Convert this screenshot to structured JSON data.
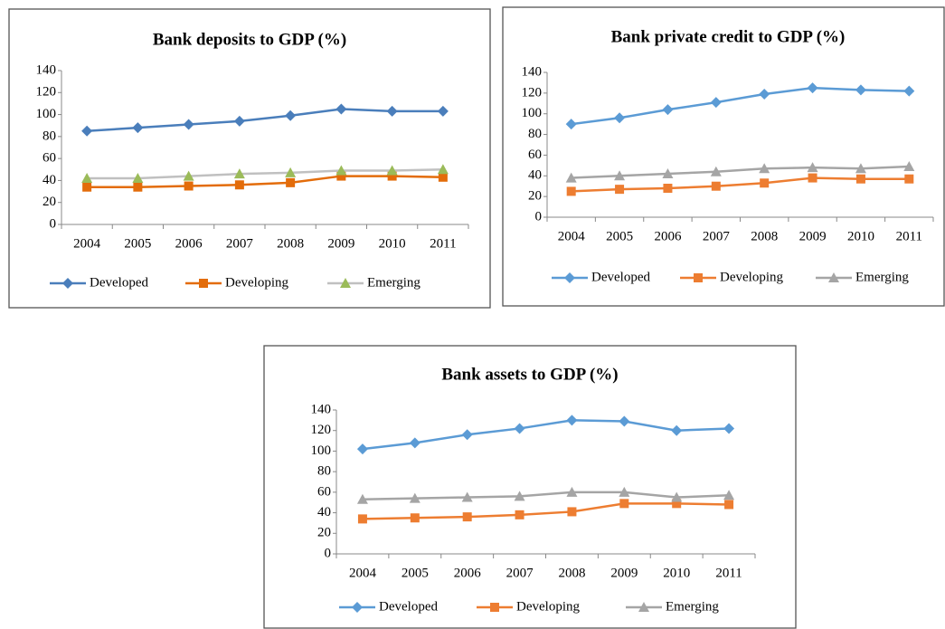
{
  "chart_data": [
    {
      "type": "line",
      "title": "Bank deposits to GDP (%)",
      "categories": [
        "2004",
        "2005",
        "2006",
        "2007",
        "2008",
        "2009",
        "2010",
        "2011"
      ],
      "ylim": [
        0,
        140
      ],
      "yticks": [
        0,
        20,
        40,
        60,
        80,
        100,
        120,
        140
      ],
      "series": [
        {
          "name": "Developed",
          "color": "#4a7ebb",
          "marker": "diamond",
          "marker_color": "#4a7ebb",
          "values": [
            85,
            88,
            91,
            94,
            99,
            105,
            103,
            103
          ]
        },
        {
          "name": "Developing",
          "color": "#e36c0a",
          "marker": "square",
          "marker_color": "#e36c0a",
          "values": [
            34,
            34,
            35,
            36,
            38,
            44,
            44,
            43
          ]
        },
        {
          "name": "Emerging",
          "color": "#c0c0c0",
          "marker": "triangle",
          "marker_color": "#9bbb59",
          "values": [
            42,
            42,
            44,
            46,
            47,
            49,
            49,
            50
          ]
        }
      ]
    },
    {
      "type": "line",
      "title": "Bank private credit to GDP (%)",
      "categories": [
        "2004",
        "2005",
        "2006",
        "2007",
        "2008",
        "2009",
        "2010",
        "2011"
      ],
      "ylim": [
        0,
        140
      ],
      "yticks": [
        0,
        20,
        40,
        60,
        80,
        100,
        120,
        140
      ],
      "series": [
        {
          "name": "Developed",
          "color": "#5b9bd5",
          "marker": "diamond",
          "marker_color": "#5b9bd5",
          "values": [
            90,
            96,
            104,
            111,
            119,
            125,
            123,
            122
          ]
        },
        {
          "name": "Developing",
          "color": "#ed7d31",
          "marker": "square",
          "marker_color": "#ed7d31",
          "values": [
            25,
            27,
            28,
            30,
            33,
            38,
            37,
            37
          ]
        },
        {
          "name": "Emerging",
          "color": "#a5a5a5",
          "marker": "triangle",
          "marker_color": "#a5a5a5",
          "values": [
            38,
            40,
            42,
            44,
            47,
            48,
            47,
            49
          ]
        }
      ]
    },
    {
      "type": "line",
      "title": "Bank assets to GDP (%)",
      "categories": [
        "2004",
        "2005",
        "2006",
        "2007",
        "2008",
        "2009",
        "2010",
        "2011"
      ],
      "ylim": [
        0,
        140
      ],
      "yticks": [
        0,
        20,
        40,
        60,
        80,
        100,
        120,
        140
      ],
      "series": [
        {
          "name": "Developed",
          "color": "#5b9bd5",
          "marker": "diamond",
          "marker_color": "#5b9bd5",
          "values": [
            102,
            108,
            116,
            122,
            130,
            129,
            120,
            122
          ]
        },
        {
          "name": "Developing",
          "color": "#ed7d31",
          "marker": "square",
          "marker_color": "#ed7d31",
          "values": [
            34,
            35,
            36,
            38,
            41,
            49,
            49,
            48
          ]
        },
        {
          "name": "Emerging",
          "color": "#a5a5a5",
          "marker": "triangle",
          "marker_color": "#a5a5a5",
          "values": [
            53,
            54,
            55,
            56,
            60,
            60,
            55,
            57
          ]
        }
      ]
    }
  ]
}
